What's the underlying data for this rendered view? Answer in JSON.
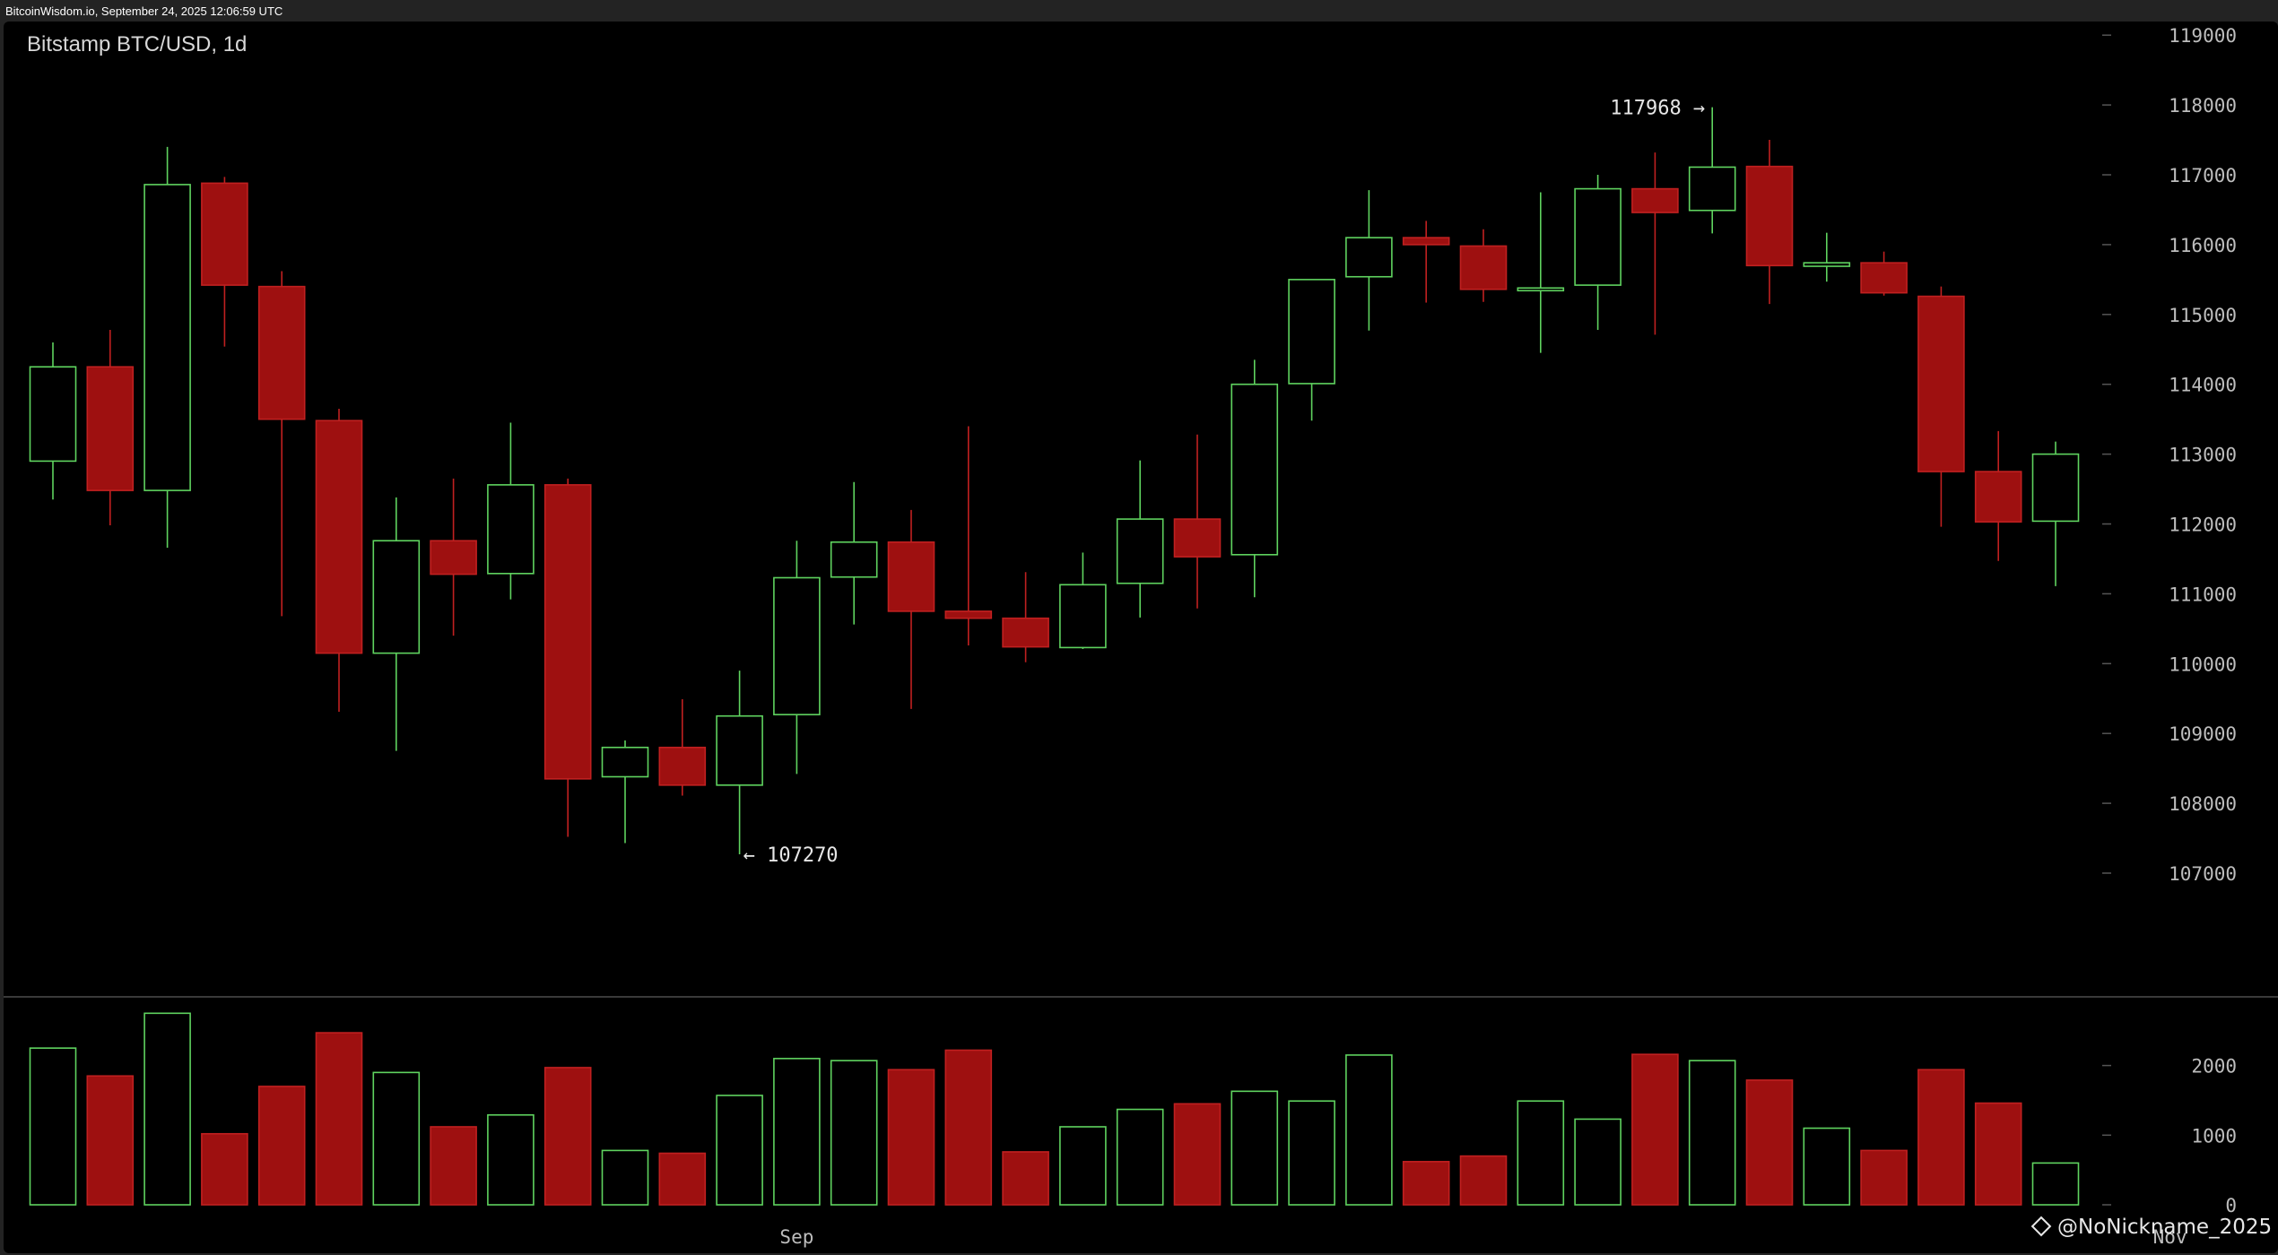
{
  "header": {
    "source_stamp": "BitcoinWisdom.io, September 24, 2025 12:06:59 UTC"
  },
  "watermark": "@NoNickname_2025",
  "colors": {
    "up": "#5fd35f",
    "down": "#9e1010",
    "down_border": "#c02020",
    "grid_text": "#bdbdbd",
    "background": "#000000"
  },
  "chart_data": {
    "type": "candlestick",
    "title": "Bitstamp BTC/USD, 1d",
    "price_axis": {
      "ticks": [
        107000,
        108000,
        109000,
        110000,
        111000,
        112000,
        113000,
        114000,
        115000,
        116000,
        117000,
        118000,
        119000
      ],
      "tick_labels": [
        "107000",
        "108000",
        "109000",
        "110000",
        "111000",
        "112000",
        "113000",
        "114000",
        "115000",
        "116000",
        "117000",
        "118000",
        "119000"
      ]
    },
    "volume_axis": {
      "ticks": [
        0,
        1000,
        2000
      ],
      "tick_labels": [
        "0",
        "1000",
        "2000"
      ]
    },
    "x_labels": [
      {
        "index": 13,
        "label": "Sep"
      },
      {
        "index": 37,
        "label": "Nov"
      }
    ],
    "annotations": [
      {
        "index": 29,
        "value": 117968,
        "text": "117968 →",
        "side": "left"
      },
      {
        "index": 12,
        "value": 107270,
        "text": "← 107270",
        "side": "right"
      }
    ],
    "candles": [
      {
        "o": 112900,
        "h": 114600,
        "l": 112350,
        "c": 114250,
        "v": 2250
      },
      {
        "o": 114250,
        "h": 114780,
        "l": 111980,
        "c": 112480,
        "v": 1850
      },
      {
        "o": 112480,
        "h": 117400,
        "l": 111660,
        "c": 116860,
        "v": 2750
      },
      {
        "o": 116880,
        "h": 116970,
        "l": 114540,
        "c": 115420,
        "v": 1020
      },
      {
        "o": 115400,
        "h": 115620,
        "l": 110680,
        "c": 113500,
        "v": 1700
      },
      {
        "o": 113480,
        "h": 113650,
        "l": 109310,
        "c": 110150,
        "v": 2470
      },
      {
        "o": 110150,
        "h": 112380,
        "l": 108750,
        "c": 111760,
        "v": 1900
      },
      {
        "o": 111760,
        "h": 112650,
        "l": 110400,
        "c": 111280,
        "v": 1120
      },
      {
        "o": 111290,
        "h": 113450,
        "l": 110920,
        "c": 112560,
        "v": 1290
      },
      {
        "o": 112560,
        "h": 112650,
        "l": 107520,
        "c": 108350,
        "v": 1970
      },
      {
        "o": 108380,
        "h": 108900,
        "l": 107430,
        "c": 108800,
        "v": 780
      },
      {
        "o": 108800,
        "h": 109490,
        "l": 108110,
        "c": 108260,
        "v": 740
      },
      {
        "o": 108260,
        "h": 109900,
        "l": 107270,
        "c": 109250,
        "v": 1570
      },
      {
        "o": 109270,
        "h": 111760,
        "l": 108420,
        "c": 111230,
        "v": 2100
      },
      {
        "o": 111240,
        "h": 112600,
        "l": 110560,
        "c": 111740,
        "v": 2070
      },
      {
        "o": 111740,
        "h": 112200,
        "l": 109350,
        "c": 110750,
        "v": 1940
      },
      {
        "o": 110750,
        "h": 113400,
        "l": 110260,
        "c": 110650,
        "v": 2220
      },
      {
        "o": 110650,
        "h": 111310,
        "l": 110020,
        "c": 110240,
        "v": 760
      },
      {
        "o": 110230,
        "h": 111590,
        "l": 110210,
        "c": 111130,
        "v": 1120
      },
      {
        "o": 111150,
        "h": 112910,
        "l": 110660,
        "c": 112070,
        "v": 1370
      },
      {
        "o": 112070,
        "h": 113280,
        "l": 110790,
        "c": 111530,
        "v": 1450
      },
      {
        "o": 111560,
        "h": 114350,
        "l": 110950,
        "c": 114000,
        "v": 1630
      },
      {
        "o": 114010,
        "h": 115500,
        "l": 113480,
        "c": 115500,
        "v": 1490
      },
      {
        "o": 115540,
        "h": 116780,
        "l": 114770,
        "c": 116100,
        "v": 2150
      },
      {
        "o": 116100,
        "h": 116340,
        "l": 115170,
        "c": 116000,
        "v": 620
      },
      {
        "o": 115980,
        "h": 116220,
        "l": 115180,
        "c": 115360,
        "v": 700
      },
      {
        "o": 115340,
        "h": 116750,
        "l": 114450,
        "c": 115360,
        "v": 1490
      },
      {
        "o": 115420,
        "h": 117000,
        "l": 114780,
        "c": 116800,
        "v": 1230
      },
      {
        "o": 116800,
        "h": 117320,
        "l": 114710,
        "c": 116460,
        "v": 2160
      },
      {
        "o": 116490,
        "h": 117968,
        "l": 116160,
        "c": 117110,
        "v": 2070
      },
      {
        "o": 117120,
        "h": 117500,
        "l": 115150,
        "c": 115700,
        "v": 1790
      },
      {
        "o": 115690,
        "h": 116170,
        "l": 115470,
        "c": 115740,
        "v": 1100
      },
      {
        "o": 115740,
        "h": 115900,
        "l": 115270,
        "c": 115310,
        "v": 780
      },
      {
        "o": 115260,
        "h": 115400,
        "l": 111960,
        "c": 112750,
        "v": 1940
      },
      {
        "o": 112750,
        "h": 113330,
        "l": 111470,
        "c": 112030,
        "v": 1460
      },
      {
        "o": 112040,
        "h": 113180,
        "l": 111110,
        "c": 113000,
        "v": 600
      }
    ]
  }
}
